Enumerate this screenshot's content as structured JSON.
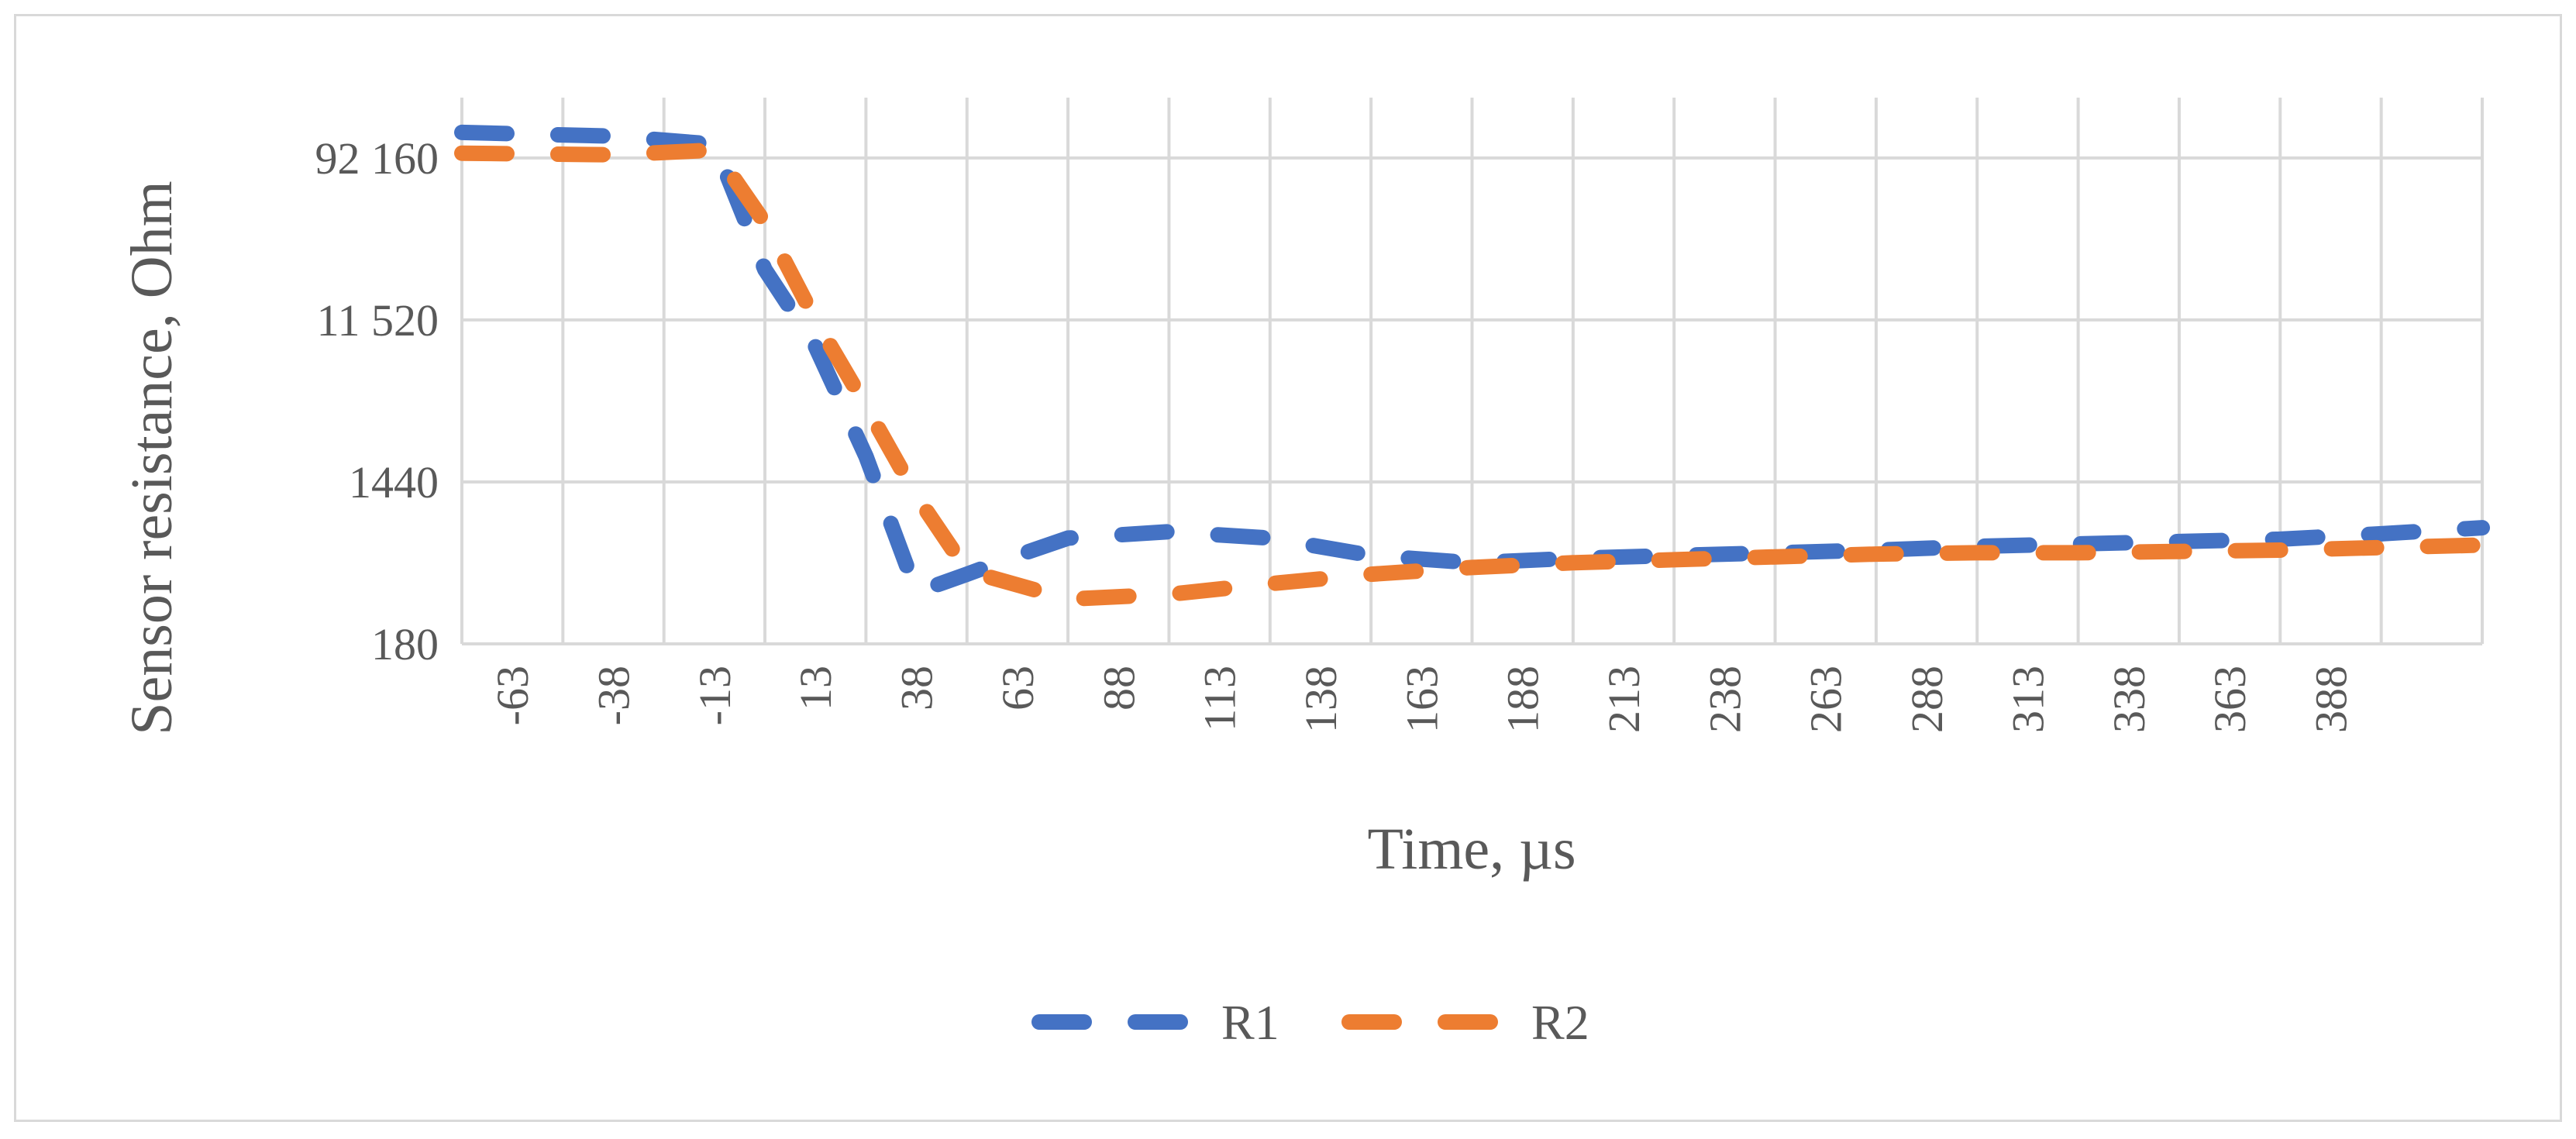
{
  "chart_data": {
    "type": "line",
    "xlabel": "Time, µs",
    "ylabel": "Sensor resistance, Ohm",
    "y_scale": "log",
    "y_ticks": [
      180,
      1440,
      11520,
      92160
    ],
    "y_tick_labels": [
      "180",
      "1440",
      "11 520",
      "92 160"
    ],
    "ylim": [
      180,
      200000
    ],
    "x_tick_labels": [
      "-63",
      "-38",
      "-13",
      "13",
      "38",
      "63",
      "88",
      "113",
      "138",
      "163",
      "188",
      "213",
      "238",
      "263",
      "288",
      "313",
      "338",
      "363",
      "388"
    ],
    "x_tick_values": [
      -63,
      -38,
      -13,
      13,
      38,
      63,
      88,
      113,
      138,
      163,
      188,
      213,
      238,
      263,
      288,
      313,
      338,
      363,
      388
    ],
    "x_category_count": 21,
    "grid": true,
    "legend_position": "bottom",
    "series": [
      {
        "name": "R1",
        "color": "#4472C4",
        "x_index": [
          0,
          1.5,
          2.5,
          3,
          3.5,
          4,
          4.5,
          5,
          5.5,
          6,
          7,
          8,
          9,
          10,
          11,
          12,
          13,
          14,
          15,
          16,
          17,
          18,
          19,
          20
        ],
        "values": [
          128000,
          122000,
          110000,
          22000,
          8200,
          2000,
          350,
          440,
          560,
          700,
          760,
          700,
          560,
          510,
          540,
          560,
          580,
          600,
          630,
          650,
          670,
          690,
          740,
          800
        ]
      },
      {
        "name": "R2",
        "color": "#ED7D31",
        "x_index": [
          0,
          1.5,
          2.5,
          3,
          3.5,
          4,
          4.5,
          5,
          6,
          7,
          8,
          9,
          10,
          11,
          12,
          13,
          14,
          15,
          16,
          17,
          18,
          19,
          20
        ],
        "values": [
          98000,
          96000,
          102000,
          40000,
          11500,
          3800,
          1200,
          460,
          320,
          340,
          390,
          440,
          480,
          510,
          530,
          550,
          570,
          580,
          580,
          590,
          600,
          620,
          640
        ]
      }
    ]
  }
}
